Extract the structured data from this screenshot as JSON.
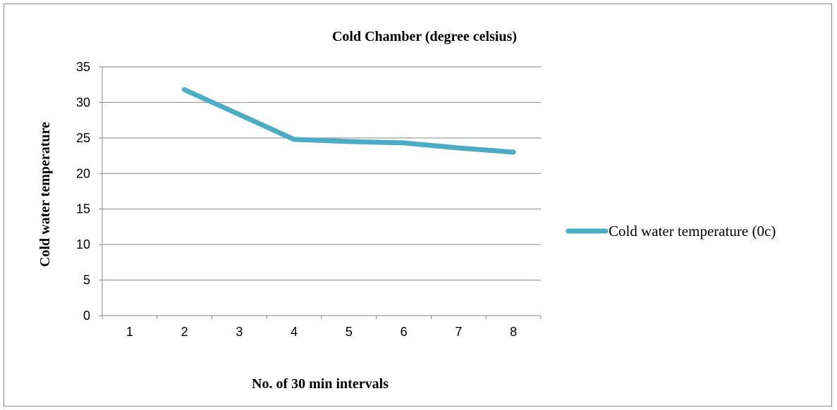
{
  "chart_data": {
    "type": "line",
    "title": "Cold Chamber (degree celsius)",
    "xlabel": "No. of 30 min intervals",
    "ylabel": "Cold water temperature",
    "categories": [
      "1",
      "2",
      "3",
      "4",
      "5",
      "6",
      "7",
      "8"
    ],
    "series": [
      {
        "name": "Cold water temperature (0c)",
        "color": "#4bacc6",
        "values": [
          null,
          31.8,
          28.3,
          24.8,
          24.5,
          24.3,
          23.6,
          23.0
        ]
      }
    ],
    "ylim": [
      0,
      35
    ],
    "yticks": [
      0,
      5,
      10,
      15,
      20,
      25,
      30,
      35
    ],
    "grid": true,
    "legend": "right"
  }
}
